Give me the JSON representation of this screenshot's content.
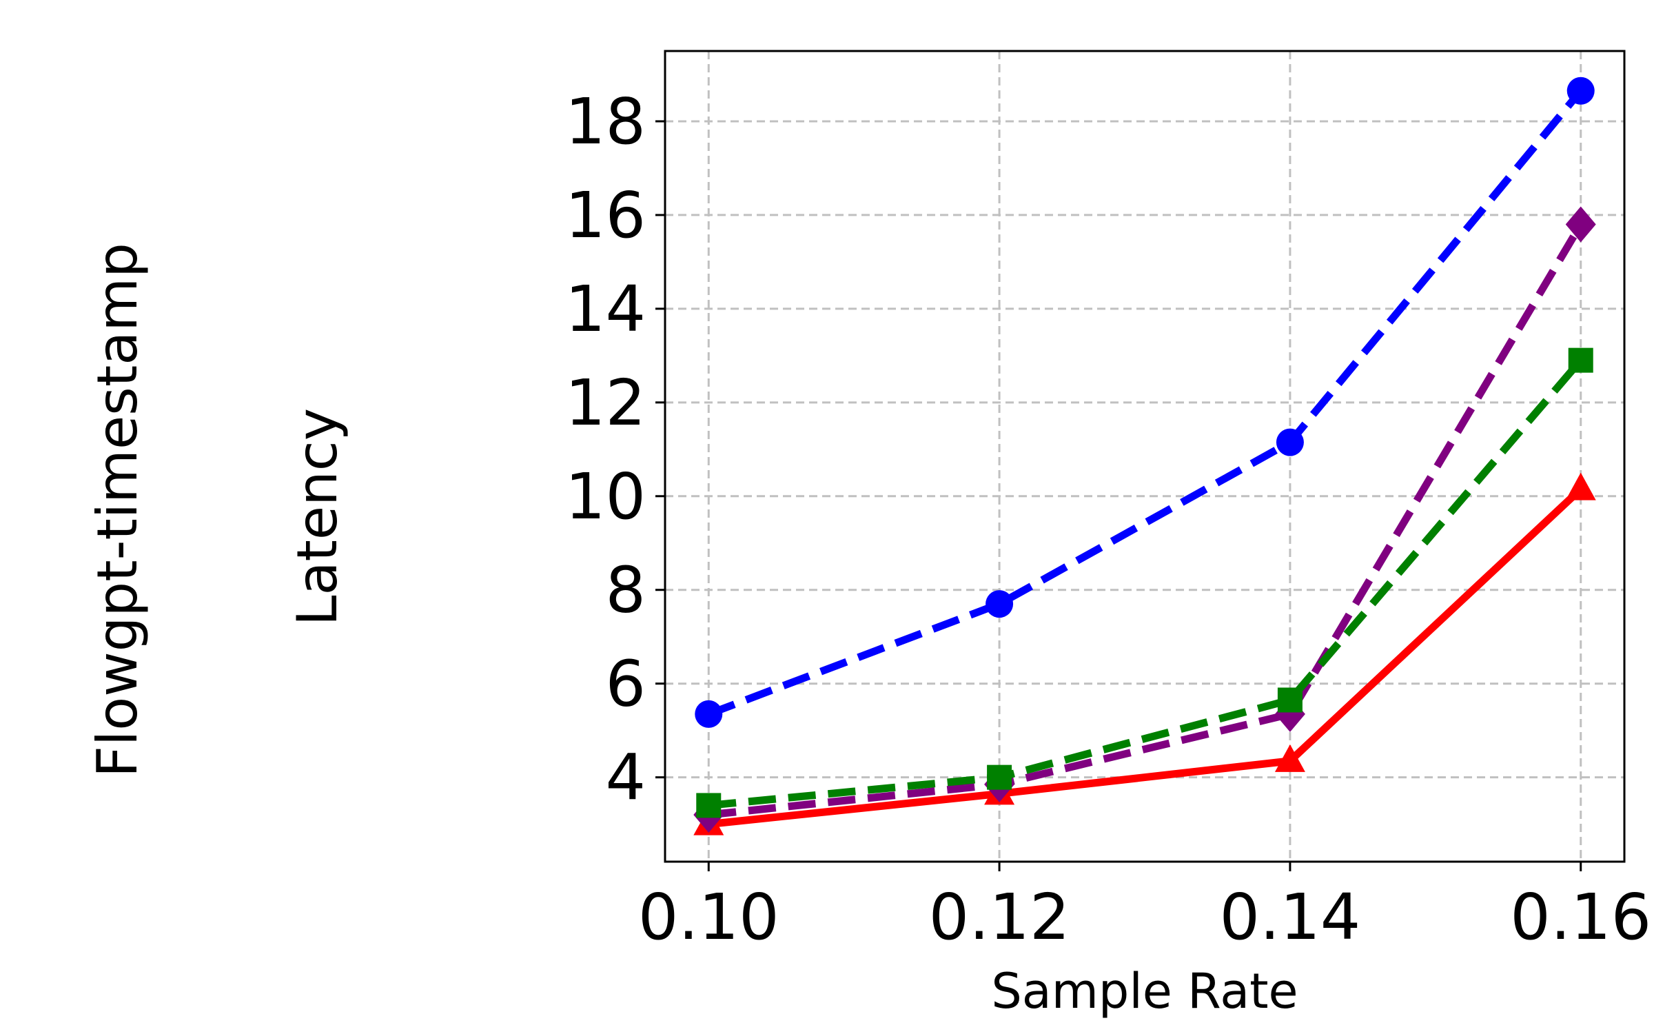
{
  "row_label": "Flowgpt-timestamp",
  "chart_data": {
    "type": "line",
    "title": "",
    "xlabel": "Sample Rate",
    "ylabel": "Latency",
    "x": [
      0.1,
      0.12,
      0.14,
      0.16
    ],
    "x_tick_labels": [
      "0.10",
      "0.12",
      "0.14",
      "0.16"
    ],
    "y_ticks": [
      4,
      6,
      8,
      10,
      12,
      14,
      16,
      18
    ],
    "xlim": [
      0.097,
      0.163
    ],
    "ylim": [
      2.2,
      19.5
    ],
    "grid": true,
    "series": [
      {
        "values": [
          5.35,
          7.7,
          11.15,
          18.65
        ],
        "color": "#0000ff",
        "marker": "circle",
        "linestyle": "dashed"
      },
      {
        "values": [
          3.4,
          4.0,
          5.65,
          12.9
        ],
        "color": "#008000",
        "marker": "square",
        "linestyle": "dashed"
      },
      {
        "values": [
          3.0,
          3.65,
          4.35,
          10.15
        ],
        "color": "#ff0000",
        "marker": "triangle",
        "linestyle": "solid"
      },
      {
        "values": [
          3.2,
          3.85,
          5.35,
          15.8
        ],
        "color": "#800080",
        "marker": "diamond",
        "linestyle": "dashed"
      }
    ]
  }
}
